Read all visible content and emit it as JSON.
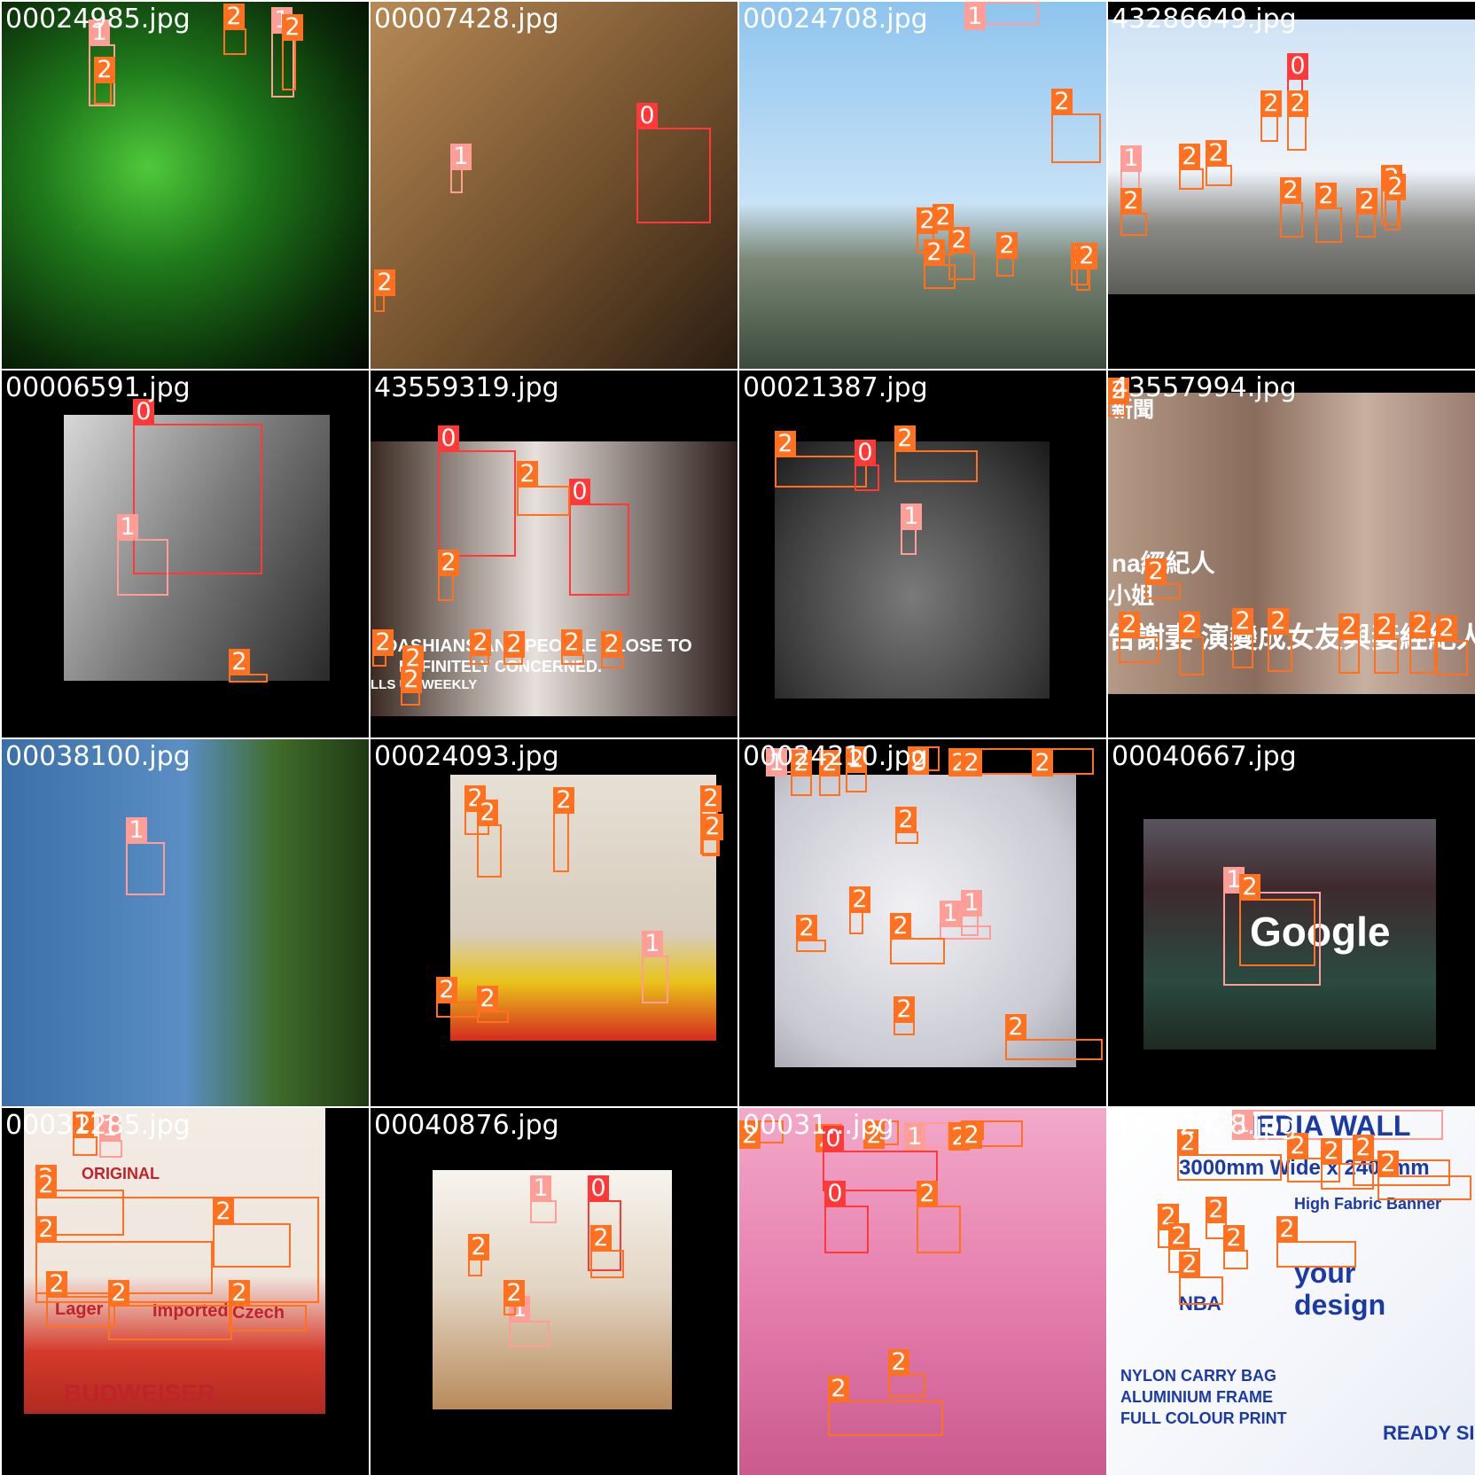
{
  "tiles": [
    {
      "filename": "00024985.jpg",
      "boxes": [
        {
          "c": "1",
          "label": "1"
        },
        {
          "c": "2",
          "label": "2"
        },
        {
          "c": "2",
          "label": "2"
        },
        {
          "c": "1",
          "label": "1"
        },
        {
          "c": "2",
          "label": "2"
        }
      ]
    },
    {
      "filename": "00007428.jpg",
      "boxes": [
        {
          "c": "0",
          "label": "0"
        },
        {
          "c": "1",
          "label": "1"
        },
        {
          "c": "2",
          "label": "2"
        }
      ]
    },
    {
      "filename": "00024708.jpg",
      "boxes": [
        {
          "c": "1",
          "label": "1"
        },
        {
          "c": "2",
          "label": "2"
        },
        {
          "c": "2",
          "label": "2"
        },
        {
          "c": "2",
          "label": "2"
        },
        {
          "c": "2",
          "label": "2"
        },
        {
          "c": "2",
          "label": "2"
        },
        {
          "c": "2",
          "label": "2"
        },
        {
          "c": "2",
          "label": "2"
        },
        {
          "c": "2",
          "label": "2"
        }
      ]
    },
    {
      "filename": "43286649.jpg",
      "boxes": [
        {
          "c": "0",
          "label": "0"
        },
        {
          "c": "2",
          "label": "2"
        },
        {
          "c": "2",
          "label": "2"
        },
        {
          "c": "1",
          "label": "1"
        },
        {
          "c": "2",
          "label": "2"
        },
        {
          "c": "2",
          "label": "2"
        },
        {
          "c": "2",
          "label": "2"
        },
        {
          "c": "2",
          "label": "2"
        },
        {
          "c": "2",
          "label": "2"
        },
        {
          "c": "2",
          "label": "2"
        },
        {
          "c": "2",
          "label": "2"
        },
        {
          "c": "2",
          "label": "2"
        }
      ]
    },
    {
      "filename": "00006591.jpg",
      "boxes": [
        {
          "c": "0",
          "label": "0"
        },
        {
          "c": "1",
          "label": "1"
        },
        {
          "c": "2",
          "label": "2"
        }
      ]
    },
    {
      "filename": "43559319.jpg",
      "boxes": [
        {
          "c": "0",
          "label": "0"
        },
        {
          "c": "0",
          "label": "0"
        },
        {
          "c": "2",
          "label": "2"
        },
        {
          "c": "2",
          "label": "2"
        },
        {
          "c": "2",
          "label": "2"
        },
        {
          "c": "2",
          "label": "2"
        },
        {
          "c": "2",
          "label": "2"
        },
        {
          "c": "2",
          "label": "2"
        },
        {
          "c": "2",
          "label": "2"
        },
        {
          "c": "2",
          "label": "2"
        },
        {
          "c": "2",
          "label": "2"
        }
      ],
      "overlay_lines": [
        "DASHIANS AND PEOPLE CLOSE TO",
        "DEFINITELY CONCERNED.",
        "LLS US WEEKLY"
      ]
    },
    {
      "filename": "00021387.jpg",
      "boxes": [
        {
          "c": "2",
          "label": "2"
        },
        {
          "c": "2",
          "label": "2"
        },
        {
          "c": "0",
          "label": "0"
        },
        {
          "c": "1",
          "label": "1"
        }
      ]
    },
    {
      "filename": "43557994.jpg",
      "boxes": [
        {
          "c": "2",
          "label": "2"
        },
        {
          "c": "2",
          "label": "2"
        },
        {
          "c": "2",
          "label": "2"
        },
        {
          "c": "2",
          "label": "2"
        },
        {
          "c": "2",
          "label": "2"
        },
        {
          "c": "2",
          "label": "2"
        },
        {
          "c": "2",
          "label": "2"
        },
        {
          "c": "2",
          "label": "2"
        },
        {
          "c": "2",
          "label": "2"
        },
        {
          "c": "2",
          "label": "2"
        }
      ],
      "overlay_lines": [
        "新聞",
        "na經紀人",
        "小姐",
        "告謝妻 演變成女友與妻經紀人"
      ]
    },
    {
      "filename": "00038100.jpg",
      "boxes": [
        {
          "c": "1",
          "label": "1"
        }
      ]
    },
    {
      "filename": "00024093.jpg",
      "boxes": [
        {
          "c": "2",
          "label": "2"
        },
        {
          "c": "2",
          "label": "2"
        },
        {
          "c": "2",
          "label": "2"
        },
        {
          "c": "2",
          "label": "2"
        },
        {
          "c": "2",
          "label": "2"
        },
        {
          "c": "1",
          "label": "1"
        },
        {
          "c": "2",
          "label": "2"
        },
        {
          "c": "2",
          "label": "2"
        }
      ]
    },
    {
      "filename": "00024210.jpg",
      "boxes": [
        {
          "c": "1",
          "label": "1"
        },
        {
          "c": "2",
          "label": "2"
        },
        {
          "c": "2",
          "label": "2"
        },
        {
          "c": "2",
          "label": "2"
        },
        {
          "c": "2",
          "label": "2"
        },
        {
          "c": "2",
          "label": "2"
        },
        {
          "c": "2",
          "label": "2"
        },
        {
          "c": "1",
          "label": "1"
        },
        {
          "c": "2",
          "label": "2"
        },
        {
          "c": "2",
          "label": "2"
        },
        {
          "c": "2",
          "label": "2"
        },
        {
          "c": "1",
          "label": "1"
        },
        {
          "c": "2",
          "label": "2"
        },
        {
          "c": "2",
          "label": "2"
        },
        {
          "c": "2",
          "label": "2"
        },
        {
          "c": "2",
          "label": "2"
        }
      ]
    },
    {
      "filename": "00040667.jpg",
      "boxes": [
        {
          "c": "1",
          "label": "1"
        },
        {
          "c": "2",
          "label": "2"
        }
      ],
      "overlay_lines": [
        "Google"
      ]
    },
    {
      "filename": "00031285.jpg",
      "boxes": [
        {
          "c": "2",
          "label": "2"
        },
        {
          "c": "1",
          "label": "1"
        },
        {
          "c": "2",
          "label": "2"
        },
        {
          "c": "2",
          "label": "2"
        },
        {
          "c": "2",
          "label": "2"
        },
        {
          "c": "2",
          "label": "2"
        },
        {
          "c": "2",
          "label": "2"
        },
        {
          "c": "2",
          "label": "2"
        },
        {
          "c": "2",
          "label": "2"
        }
      ],
      "overlay_lines": [
        "ORIGINAL",
        "Lager",
        "Imported",
        "Czech",
        "BUDWEISER"
      ]
    },
    {
      "filename": "00040876.jpg",
      "boxes": [
        {
          "c": "1",
          "label": "1"
        },
        {
          "c": "0",
          "label": "0"
        },
        {
          "c": "2",
          "label": "2"
        },
        {
          "c": "2",
          "label": "2"
        },
        {
          "c": "1",
          "label": "1"
        },
        {
          "c": "2",
          "label": "2"
        }
      ]
    },
    {
      "filename": "00031...jpg",
      "boxes": [
        {
          "c": "2",
          "label": "2"
        },
        {
          "c": "2",
          "label": "2"
        },
        {
          "c": "2",
          "label": "2"
        },
        {
          "c": "1",
          "label": "1"
        },
        {
          "c": "2",
          "label": "2"
        },
        {
          "c": "2",
          "label": "2"
        },
        {
          "c": "0",
          "label": "0"
        },
        {
          "c": "0",
          "label": "0"
        },
        {
          "c": "2",
          "label": "2"
        },
        {
          "c": "2",
          "label": "2"
        },
        {
          "c": "2",
          "label": "2"
        }
      ]
    },
    {
      "filename": "43422928.jpg",
      "boxes": [
        {
          "c": "1",
          "label": "1"
        },
        {
          "c": "2",
          "label": "2"
        },
        {
          "c": "2",
          "label": "2"
        },
        {
          "c": "2",
          "label": "2"
        },
        {
          "c": "2",
          "label": "2"
        },
        {
          "c": "2",
          "label": "2"
        },
        {
          "c": "2",
          "label": "2"
        },
        {
          "c": "2",
          "label": "2"
        },
        {
          "c": "2",
          "label": "2"
        },
        {
          "c": "2",
          "label": "2"
        },
        {
          "c": "2",
          "label": "2"
        },
        {
          "c": "2",
          "label": "2"
        },
        {
          "c": "2",
          "label": "2"
        }
      ],
      "overlay_lines": [
        "MEDIA WALL",
        "3000mm Wide x 2400mm",
        "High Fabric Banner",
        "your",
        "design",
        "NBA",
        "NYLON CARRY BAG",
        "ALUMINIUM FRAME",
        "FULL COLOUR PRINT",
        "READY SIGN"
      ]
    }
  ]
}
